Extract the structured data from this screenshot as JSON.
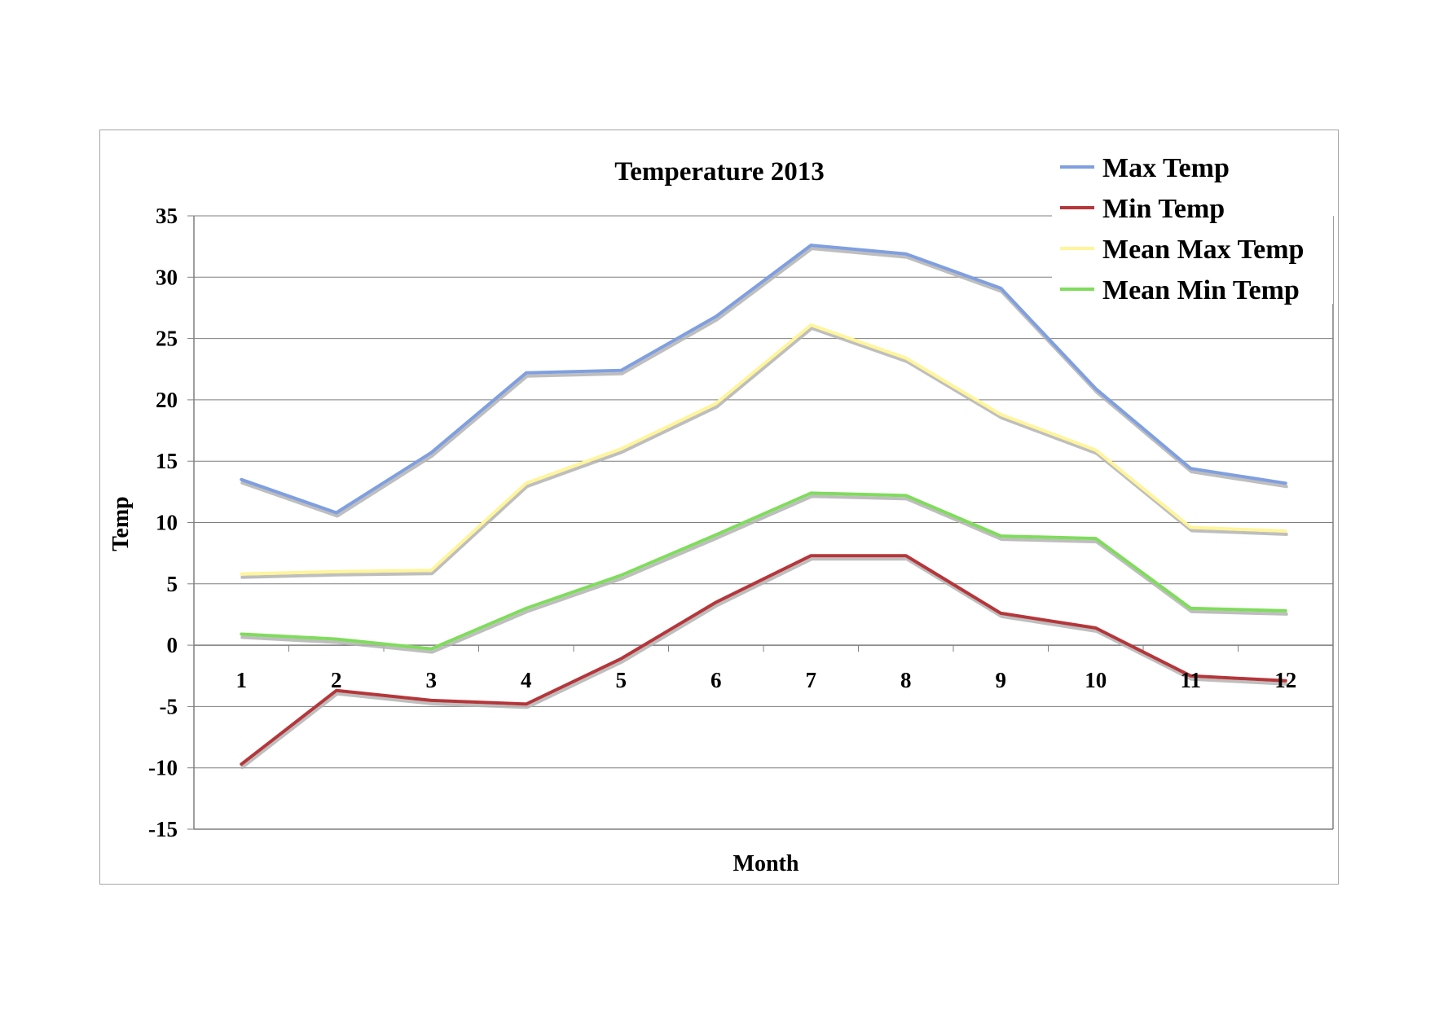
{
  "chart_data": {
    "type": "line",
    "title": "Temperature 2013",
    "xlabel": "Month",
    "ylabel": "Temp",
    "categories": [
      "1",
      "2",
      "3",
      "4",
      "5",
      "6",
      "7",
      "8",
      "9",
      "10",
      "11",
      "12"
    ],
    "ylim": [
      -15,
      35
    ],
    "yticks": [
      35,
      30,
      25,
      20,
      15,
      10,
      5,
      0,
      -5,
      -10,
      -15
    ],
    "grid": true,
    "legend_position": "top-right",
    "series": [
      {
        "name": "Max Temp",
        "color": "#7f9fe0",
        "values": [
          13.5,
          10.8,
          15.7,
          22.2,
          22.4,
          26.8,
          32.6,
          31.9,
          29.1,
          20.9,
          14.4,
          13.2
        ]
      },
      {
        "name": "Min Temp",
        "color": "#b5363a",
        "values": [
          -9.7,
          -3.7,
          -4.5,
          -4.8,
          -1.1,
          3.5,
          7.3,
          7.3,
          2.6,
          1.4,
          -2.5,
          -2.9
        ]
      },
      {
        "name": "Mean Max Temp",
        "color": "#fff59a",
        "values": [
          5.8,
          6.0,
          6.1,
          13.2,
          16.0,
          19.7,
          26.1,
          23.4,
          18.8,
          15.9,
          9.6,
          9.3
        ]
      },
      {
        "name": "Mean Min Temp",
        "color": "#7fdc5c",
        "values": [
          0.9,
          0.5,
          -0.3,
          3.0,
          5.7,
          9.0,
          12.4,
          12.2,
          8.9,
          8.7,
          3.0,
          2.8
        ]
      }
    ]
  }
}
